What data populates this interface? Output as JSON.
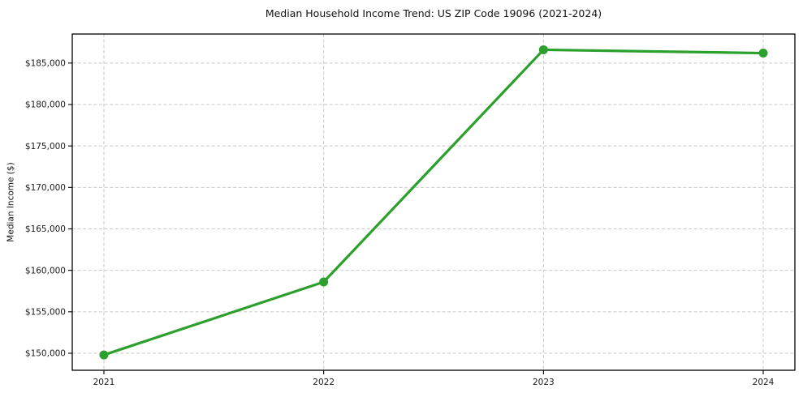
{
  "chart_data": {
    "type": "line",
    "title": "Median Household Income Trend: US ZIP Code 19096 (2021-2024)",
    "ylabel": "Median Income ($)",
    "xlabel": "",
    "x": [
      2021,
      2022,
      2023,
      2024
    ],
    "xtick_labels": [
      "2021",
      "2022",
      "2023",
      "2024"
    ],
    "series": [
      {
        "name": "Median household income",
        "values": [
          149800,
          158600,
          186600,
          186200
        ]
      }
    ],
    "yticks": [
      150000,
      155000,
      160000,
      165000,
      170000,
      175000,
      180000,
      185000
    ],
    "ytick_labels": [
      "$150,000",
      "$155,000",
      "$160,000",
      "$165,000",
      "$170,000",
      "$175,000",
      "$180,000",
      "$185,000"
    ],
    "xlim": [
      2020.856,
      2024.144
    ],
    "ylim": [
      147950,
      188500
    ],
    "grid": true,
    "legend": "none",
    "line_color": "#2ca02c",
    "grid_color": "#c9c9c9",
    "marker": "circle"
  }
}
